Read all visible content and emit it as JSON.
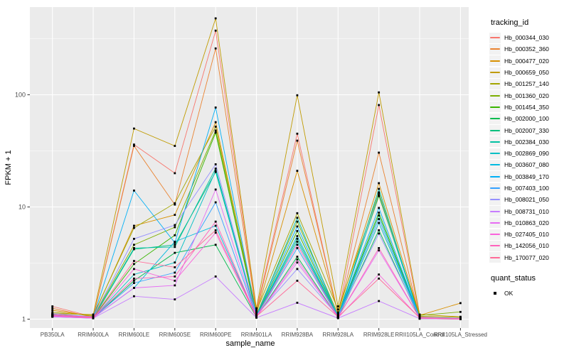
{
  "chart_data": {
    "type": "line",
    "title": "",
    "xlabel": "sample_name",
    "ylabel": "FPKM + 1",
    "yscale": "log10",
    "ylim": [
      0.83,
      600
    ],
    "yticks": [
      1,
      10,
      100
    ],
    "ytick_labels": [
      "1",
      "10",
      "100"
    ],
    "grid": "on",
    "panel_bg": "#EBEBEB",
    "gridline_color": "#FFFFFF",
    "tick_label_color": "#4D4D4D",
    "point_color": "#000000",
    "legend_position": "right",
    "legend_title": "tracking_id",
    "categories": [
      "PB350LA",
      "RRIM600LA",
      "RRIM600LE",
      "RRIM600SE",
      "RRIM600PE",
      "RRIM901LA",
      "RRIM928BA",
      "RRIM928LA",
      "RRIM928LE",
      "RRII105LA_Control",
      "RRII105LA_Stressed"
    ],
    "series": [
      {
        "name": "Hb_000344_030",
        "color": "#F8766D",
        "values": [
          1.3,
          1.05,
          36,
          20,
          373,
          1.2,
          45,
          1.1,
          81,
          1.05,
          1.0
        ]
      },
      {
        "name": "Hb_000352_360",
        "color": "#EA8331",
        "values": [
          1.25,
          1.04,
          35,
          10.5,
          259,
          1.15,
          39,
          1.12,
          30.5,
          1.04,
          1.0
        ]
      },
      {
        "name": "Hb_000477_020",
        "color": "#D89000",
        "values": [
          1.2,
          1.06,
          6.8,
          8.5,
          57,
          1.12,
          21,
          1.15,
          16.3,
          1.08,
          1.39
        ]
      },
      {
        "name": "Hb_000659_050",
        "color": "#C09B00",
        "values": [
          1.12,
          1.1,
          50,
          35,
          480,
          1.25,
          99,
          1.3,
          105,
          1.1,
          1.05
        ]
      },
      {
        "name": "Hb_001257_140",
        "color": "#A3A500",
        "values": [
          1.15,
          1.08,
          6.5,
          10.8,
          52,
          1.18,
          8.8,
          1.22,
          13.5,
          1.06,
          1.04
        ]
      },
      {
        "name": "Hb_001360_020",
        "color": "#7CAE00",
        "values": [
          1.1,
          1.05,
          4.6,
          6.6,
          48,
          1.1,
          7.4,
          1.1,
          12.5,
          1.08,
          1.16
        ]
      },
      {
        "name": "Hb_001454_350",
        "color": "#39B600",
        "values": [
          1.08,
          1.03,
          3.1,
          5.6,
          46,
          1.06,
          6.1,
          1.05,
          8.9,
          1.03,
          1.02
        ]
      },
      {
        "name": "Hb_002000_100",
        "color": "#00BB4E",
        "values": [
          1.06,
          1.02,
          2.2,
          3.9,
          4.6,
          1.04,
          3.6,
          1.03,
          6.2,
          1.01,
          1.0
        ]
      },
      {
        "name": "Hb_002007_330",
        "color": "#00BF7D",
        "values": [
          1.07,
          1.02,
          4.2,
          4.6,
          20.5,
          1.05,
          5.2,
          1.04,
          8.4,
          1.02,
          1.0
        ]
      },
      {
        "name": "Hb_002384_030",
        "color": "#00C1A3",
        "values": [
          1.09,
          1.03,
          4.3,
          4.4,
          22,
          1.06,
          8.0,
          1.04,
          14.5,
          1.02,
          1.01
        ]
      },
      {
        "name": "Hb_002869_090",
        "color": "#00BFC4",
        "values": [
          1.05,
          1.02,
          2.5,
          3.2,
          21,
          1.04,
          4.9,
          1.03,
          7.2,
          1.02,
          1.0
        ]
      },
      {
        "name": "Hb_003607_080",
        "color": "#00BAE0",
        "values": [
          1.06,
          1.03,
          1.9,
          4.9,
          6.8,
          1.05,
          5.5,
          1.04,
          13,
          1.02,
          1.01
        ]
      },
      {
        "name": "Hb_003849_170",
        "color": "#00B0F6",
        "values": [
          1.1,
          1.04,
          14,
          4.8,
          77,
          1.08,
          6.7,
          1.06,
          9.8,
          1.03,
          1.01
        ]
      },
      {
        "name": "Hb_007403_100",
        "color": "#35A2FF",
        "values": [
          1.08,
          1.03,
          2.1,
          2.6,
          11,
          1.05,
          4.3,
          1.04,
          7.8,
          1.02,
          1.0
        ]
      },
      {
        "name": "Hb_008021_050",
        "color": "#9590FF",
        "values": [
          1.12,
          1.05,
          5.2,
          6.9,
          24,
          1.08,
          2.8,
          1.06,
          5.8,
          1.04,
          1.02
        ]
      },
      {
        "name": "Hb_008731_010",
        "color": "#C77CFF",
        "values": [
          1.05,
          1.02,
          1.6,
          1.5,
          2.4,
          1.03,
          1.4,
          1.02,
          1.45,
          1.01,
          1.0
        ]
      },
      {
        "name": "Hb_010863_020",
        "color": "#E76BF3",
        "values": [
          1.07,
          1.03,
          1.9,
          2.0,
          14.3,
          1.05,
          3.2,
          1.04,
          4.1,
          1.02,
          1.01
        ]
      },
      {
        "name": "Hb_027405_010",
        "color": "#FA62DB",
        "values": [
          1.06,
          1.02,
          2.8,
          2.2,
          5.9,
          1.04,
          3.4,
          1.03,
          2.5,
          1.02,
          1.0
        ]
      },
      {
        "name": "Hb_142056_010",
        "color": "#FF62BC",
        "values": [
          1.08,
          1.03,
          2.3,
          2.4,
          7.4,
          1.05,
          4.6,
          1.04,
          4.3,
          1.02,
          1.0
        ]
      },
      {
        "name": "Hb_170077_020",
        "color": "#FF6A98",
        "values": [
          1.1,
          1.04,
          3.3,
          2.9,
          6.2,
          1.06,
          2.2,
          1.05,
          2.3,
          1.03,
          1.01
        ]
      }
    ],
    "legend2": {
      "title": "quant_status",
      "items": [
        {
          "label": "OK",
          "marker": "square",
          "color": "#000000"
        }
      ]
    }
  }
}
